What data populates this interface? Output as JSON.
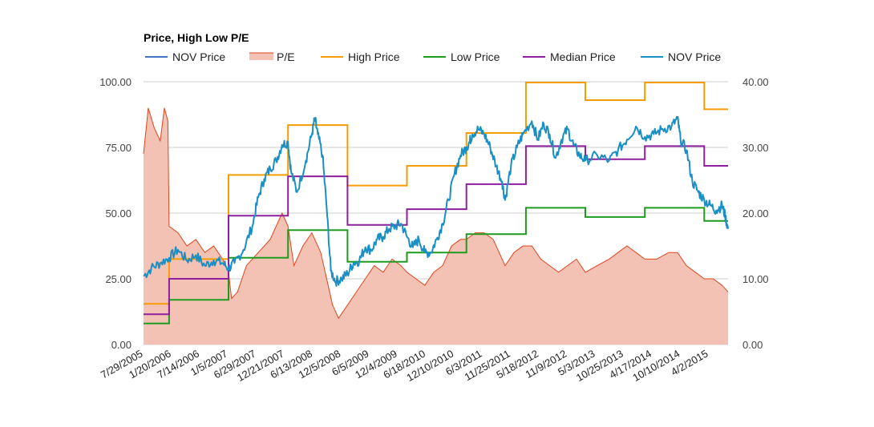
{
  "chart_data": {
    "type": "line",
    "title": "Price, High Low P/E",
    "legend_position": "top-left",
    "colors": {
      "nov_price_legend": "#4472c4",
      "pe_fill": "#f4c2b4",
      "pe_line": "#e0441c",
      "high": "#f59c00",
      "low": "#1e9b1e",
      "median": "#8e1f9e",
      "nov_price": "#1a8fc5",
      "grid": "#cccccc"
    },
    "legend": [
      {
        "key": "nov_price_legend",
        "label": "NOV Price",
        "style": "line"
      },
      {
        "key": "pe",
        "label": "P/E",
        "style": "area"
      },
      {
        "key": "high",
        "label": "High Price",
        "style": "line"
      },
      {
        "key": "low",
        "label": "Low Price",
        "style": "line"
      },
      {
        "key": "median",
        "label": "Median Price",
        "style": "line"
      },
      {
        "key": "nov_price",
        "label": "NOV Price",
        "style": "line"
      }
    ],
    "y_left": {
      "min": 0,
      "max": 100,
      "ticks": [
        "0.00",
        "25.00",
        "50.00",
        "75.00",
        "100.00"
      ]
    },
    "y_right": {
      "min": 0,
      "max": 40,
      "ticks": [
        "0.00",
        "10.00",
        "20.00",
        "30.00",
        "40.00"
      ]
    },
    "x_range": [
      2005.57,
      2015.4
    ],
    "x_tick_labels": [
      "7/29/2005",
      "1/20/2006",
      "7/14/2006",
      "1/5/2007",
      "6/29/2007",
      "12/21/2007",
      "6/13/2008",
      "12/5/2008",
      "6/5/2009",
      "12/4/2009",
      "6/18/2010",
      "12/10/2010",
      "6/3/2011",
      "11/25/2011",
      "5/18/2012",
      "11/9/2012",
      "5/3/2013",
      "10/25/2013",
      "4/17/2014",
      "10/10/2014",
      "4/2/2015"
    ],
    "high_price": [
      [
        2005.57,
        15.5
      ],
      [
        2006.0,
        15.5
      ],
      [
        2006.0,
        32.5
      ],
      [
        2007.0,
        32.5
      ],
      [
        2007.0,
        64.5
      ],
      [
        2008.0,
        64.5
      ],
      [
        2008.0,
        83.5
      ],
      [
        2009.0,
        83.5
      ],
      [
        2009.0,
        60.5
      ],
      [
        2010.0,
        60.5
      ],
      [
        2010.0,
        68.0
      ],
      [
        2011.0,
        68.0
      ],
      [
        2011.0,
        80.5
      ],
      [
        2012.0,
        80.5
      ],
      [
        2012.0,
        99.7
      ],
      [
        2013.0,
        99.7
      ],
      [
        2013.0,
        93.0
      ],
      [
        2014.0,
        93.0
      ],
      [
        2014.0,
        99.7
      ],
      [
        2015.0,
        99.7
      ],
      [
        2015.0,
        89.5
      ],
      [
        2015.4,
        89.5
      ]
    ],
    "low_price": [
      [
        2005.57,
        8.0
      ],
      [
        2006.0,
        8.0
      ],
      [
        2006.0,
        17.0
      ],
      [
        2007.0,
        17.0
      ],
      [
        2007.0,
        33.0
      ],
      [
        2008.0,
        33.0
      ],
      [
        2008.0,
        43.5
      ],
      [
        2009.0,
        43.5
      ],
      [
        2009.0,
        31.5
      ],
      [
        2010.0,
        31.5
      ],
      [
        2010.0,
        35.0
      ],
      [
        2011.0,
        35.0
      ],
      [
        2011.0,
        42.0
      ],
      [
        2012.0,
        42.0
      ],
      [
        2012.0,
        52.0
      ],
      [
        2013.0,
        52.0
      ],
      [
        2013.0,
        48.5
      ],
      [
        2014.0,
        48.5
      ],
      [
        2014.0,
        52.0
      ],
      [
        2015.0,
        52.0
      ],
      [
        2015.0,
        47.0
      ],
      [
        2015.4,
        47.0
      ]
    ],
    "median_price": [
      [
        2005.57,
        11.5
      ],
      [
        2006.0,
        11.5
      ],
      [
        2006.0,
        25.0
      ],
      [
        2007.0,
        25.0
      ],
      [
        2007.0,
        49.0
      ],
      [
        2008.0,
        49.0
      ],
      [
        2008.0,
        64.0
      ],
      [
        2009.0,
        64.0
      ],
      [
        2009.0,
        45.5
      ],
      [
        2010.0,
        45.5
      ],
      [
        2010.0,
        51.5
      ],
      [
        2011.0,
        51.5
      ],
      [
        2011.0,
        61.0
      ],
      [
        2012.0,
        61.0
      ],
      [
        2012.0,
        75.5
      ],
      [
        2013.0,
        75.5
      ],
      [
        2013.0,
        70.5
      ],
      [
        2014.0,
        70.5
      ],
      [
        2014.0,
        75.5
      ],
      [
        2015.0,
        75.5
      ],
      [
        2015.0,
        68.0
      ],
      [
        2015.4,
        68.0
      ]
    ],
    "nov_price": [
      [
        2005.57,
        26
      ],
      [
        2005.7,
        29
      ],
      [
        2005.85,
        31
      ],
      [
        2006.0,
        33
      ],
      [
        2006.15,
        36
      ],
      [
        2006.3,
        32
      ],
      [
        2006.45,
        34
      ],
      [
        2006.6,
        30
      ],
      [
        2006.75,
        32
      ],
      [
        2006.9,
        31
      ],
      [
        2007.0,
        29
      ],
      [
        2007.1,
        31
      ],
      [
        2007.25,
        36
      ],
      [
        2007.4,
        45
      ],
      [
        2007.5,
        56
      ],
      [
        2007.6,
        63
      ],
      [
        2007.7,
        67
      ],
      [
        2007.8,
        70
      ],
      [
        2007.9,
        76
      ],
      [
        2008.0,
        77
      ],
      [
        2008.05,
        66
      ],
      [
        2008.15,
        58
      ],
      [
        2008.3,
        70
      ],
      [
        2008.4,
        80
      ],
      [
        2008.45,
        86
      ],
      [
        2008.5,
        80
      ],
      [
        2008.58,
        72
      ],
      [
        2008.65,
        52
      ],
      [
        2008.72,
        28
      ],
      [
        2008.8,
        24
      ],
      [
        2008.9,
        25
      ],
      [
        2009.0,
        27
      ],
      [
        2009.1,
        31
      ],
      [
        2009.2,
        32
      ],
      [
        2009.3,
        37
      ],
      [
        2009.4,
        36
      ],
      [
        2009.5,
        40
      ],
      [
        2009.6,
        41
      ],
      [
        2009.7,
        44
      ],
      [
        2009.8,
        45
      ],
      [
        2009.9,
        46
      ],
      [
        2010.0,
        41
      ],
      [
        2010.1,
        37
      ],
      [
        2010.2,
        40
      ],
      [
        2010.3,
        35
      ],
      [
        2010.4,
        35
      ],
      [
        2010.5,
        40
      ],
      [
        2010.6,
        46
      ],
      [
        2010.7,
        55
      ],
      [
        2010.8,
        65
      ],
      [
        2010.9,
        72
      ],
      [
        2011.0,
        75
      ],
      [
        2011.05,
        77
      ],
      [
        2011.1,
        80
      ],
      [
        2011.2,
        82
      ],
      [
        2011.3,
        80
      ],
      [
        2011.4,
        75
      ],
      [
        2011.5,
        68
      ],
      [
        2011.6,
        62
      ],
      [
        2011.65,
        55
      ],
      [
        2011.75,
        68
      ],
      [
        2011.85,
        75
      ],
      [
        2011.95,
        80
      ],
      [
        2012.1,
        85
      ],
      [
        2012.2,
        78
      ],
      [
        2012.3,
        84
      ],
      [
        2012.4,
        80
      ],
      [
        2012.5,
        71
      ],
      [
        2012.6,
        78
      ],
      [
        2012.7,
        82
      ],
      [
        2012.8,
        76
      ],
      [
        2012.9,
        72
      ],
      [
        2013.0,
        70
      ],
      [
        2013.2,
        72
      ],
      [
        2013.4,
        70
      ],
      [
        2013.55,
        74
      ],
      [
        2013.7,
        78
      ],
      [
        2013.85,
        83
      ],
      [
        2014.0,
        79
      ],
      [
        2014.15,
        80
      ],
      [
        2014.3,
        82
      ],
      [
        2014.45,
        83
      ],
      [
        2014.55,
        86
      ],
      [
        2014.6,
        78
      ],
      [
        2014.7,
        74
      ],
      [
        2014.8,
        62
      ],
      [
        2014.9,
        58
      ],
      [
        2015.0,
        55
      ],
      [
        2015.1,
        53
      ],
      [
        2015.2,
        51
      ],
      [
        2015.3,
        53
      ],
      [
        2015.35,
        49
      ],
      [
        2015.4,
        44
      ]
    ],
    "pe": [
      [
        2005.57,
        29
      ],
      [
        2005.65,
        36
      ],
      [
        2005.75,
        33
      ],
      [
        2005.85,
        31
      ],
      [
        2005.92,
        36
      ],
      [
        2005.98,
        34
      ],
      [
        2006.0,
        18
      ],
      [
        2006.15,
        17
      ],
      [
        2006.3,
        15
      ],
      [
        2006.45,
        16
      ],
      [
        2006.6,
        14
      ],
      [
        2006.75,
        15
      ],
      [
        2006.9,
        13
      ],
      [
        2007.0,
        11
      ],
      [
        2007.05,
        7
      ],
      [
        2007.15,
        8
      ],
      [
        2007.3,
        12
      ],
      [
        2007.5,
        14
      ],
      [
        2007.7,
        16
      ],
      [
        2007.9,
        20
      ],
      [
        2008.0,
        18
      ],
      [
        2008.1,
        12
      ],
      [
        2008.25,
        15
      ],
      [
        2008.4,
        17
      ],
      [
        2008.55,
        14
      ],
      [
        2008.65,
        10
      ],
      [
        2008.75,
        6
      ],
      [
        2008.85,
        4
      ],
      [
        2009.0,
        6
      ],
      [
        2009.15,
        8
      ],
      [
        2009.3,
        10
      ],
      [
        2009.45,
        12
      ],
      [
        2009.6,
        11
      ],
      [
        2009.75,
        13
      ],
      [
        2009.9,
        12
      ],
      [
        2010.0,
        11
      ],
      [
        2010.15,
        10
      ],
      [
        2010.3,
        9
      ],
      [
        2010.45,
        11
      ],
      [
        2010.6,
        12
      ],
      [
        2010.75,
        15
      ],
      [
        2010.9,
        16
      ],
      [
        2011.0,
        16
      ],
      [
        2011.15,
        17
      ],
      [
        2011.3,
        17
      ],
      [
        2011.45,
        16
      ],
      [
        2011.55,
        14
      ],
      [
        2011.65,
        12
      ],
      [
        2011.8,
        14
      ],
      [
        2011.95,
        15
      ],
      [
        2012.1,
        15
      ],
      [
        2012.25,
        13
      ],
      [
        2012.4,
        12
      ],
      [
        2012.55,
        11
      ],
      [
        2012.7,
        12
      ],
      [
        2012.85,
        13
      ],
      [
        2013.0,
        11
      ],
      [
        2013.2,
        12
      ],
      [
        2013.4,
        13
      ],
      [
        2013.55,
        14
      ],
      [
        2013.7,
        15
      ],
      [
        2013.85,
        14
      ],
      [
        2014.0,
        13
      ],
      [
        2014.2,
        13
      ],
      [
        2014.4,
        14
      ],
      [
        2014.55,
        14
      ],
      [
        2014.7,
        12
      ],
      [
        2014.85,
        11
      ],
      [
        2015.0,
        10
      ],
      [
        2015.15,
        10
      ],
      [
        2015.3,
        9
      ],
      [
        2015.4,
        8
      ]
    ]
  }
}
